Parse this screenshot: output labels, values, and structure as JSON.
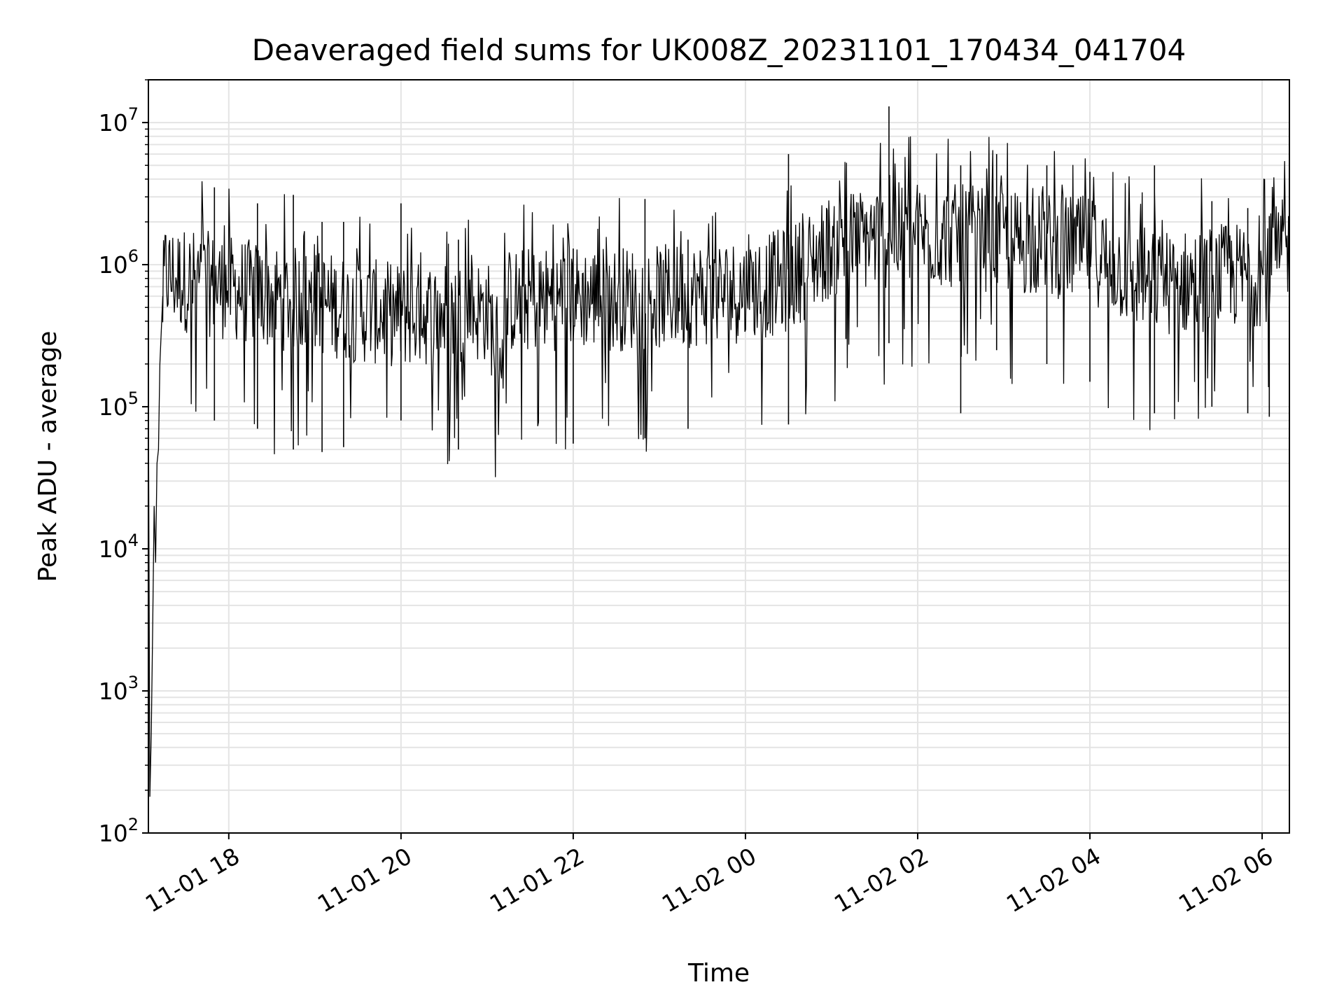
{
  "chart_data": {
    "type": "line",
    "title": "Deaveraged field sums for UK008Z_20231101_170434_041704",
    "xlabel": "Time",
    "ylabel": "Peak ADU - average",
    "yscale": "log",
    "ylim": [
      100,
      20000000
    ],
    "xlim": [
      "2023-11-01 17:04",
      "2023-11-02 06:19"
    ],
    "grid": true,
    "x_ticks": [
      {
        "value": "2023-11-01 18:00",
        "label": "11-01 18"
      },
      {
        "value": "2023-11-01 20:00",
        "label": "11-01 20"
      },
      {
        "value": "2023-11-01 22:00",
        "label": "11-01 22"
      },
      {
        "value": "2023-11-02 00:00",
        "label": "11-02 00"
      },
      {
        "value": "2023-11-02 02:00",
        "label": "11-02 02"
      },
      {
        "value": "2023-11-02 04:00",
        "label": "11-02 04"
      },
      {
        "value": "2023-11-02 06:00",
        "label": "11-02 06"
      }
    ],
    "y_ticks": [
      {
        "value": 100,
        "base": "10",
        "exp": "2"
      },
      {
        "value": 1000,
        "base": "10",
        "exp": "3"
      },
      {
        "value": 10000,
        "base": "10",
        "exp": "4"
      },
      {
        "value": 100000,
        "base": "10",
        "exp": "5"
      },
      {
        "value": 1000000,
        "base": "10",
        "exp": "6"
      },
      {
        "value": 10000000,
        "base": "10",
        "exp": "7"
      }
    ],
    "series": [
      {
        "color": "#000000",
        "x": [
          "2023-11-01 17:04",
          "2023-11-01 17:05",
          "2023-11-01 17:06",
          "2023-11-01 17:07",
          "2023-11-01 17:08",
          "2023-11-01 17:09",
          "2023-11-01 17:10",
          "2023-11-01 17:11",
          "2023-11-01 17:12",
          "2023-11-01 17:14",
          "2023-11-01 17:16",
          "2023-11-01 17:18",
          "2023-11-01 17:30",
          "2023-11-01 17:45",
          "2023-11-01 18:00",
          "2023-11-01 18:30",
          "2023-11-01 19:00",
          "2023-11-01 19:30",
          "2023-11-01 20:00",
          "2023-11-01 20:30",
          "2023-11-01 21:00",
          "2023-11-01 21:10",
          "2023-11-01 21:15",
          "2023-11-01 21:30",
          "2023-11-01 22:00",
          "2023-11-01 22:30",
          "2023-11-01 23:00",
          "2023-11-01 23:30",
          "2023-11-02 00:00",
          "2023-11-02 00:30",
          "2023-11-02 01:00",
          "2023-11-02 01:30",
          "2023-11-02 02:00",
          "2023-11-02 02:30",
          "2023-11-02 03:00",
          "2023-11-02 03:30",
          "2023-11-02 04:00",
          "2023-11-02 04:30",
          "2023-11-02 05:00",
          "2023-11-02 05:30",
          "2023-11-02 06:00",
          "2023-11-02 06:19"
        ],
        "y": [
          130000,
          180,
          500,
          3000,
          20000,
          8000,
          40000,
          50000,
          200000,
          600000,
          1000000,
          900000,
          850000,
          800000,
          750000,
          650000,
          600000,
          520000,
          480000,
          500000,
          520000,
          250000,
          600000,
          620000,
          650000,
          630000,
          640000,
          680000,
          720000,
          850000,
          1500000,
          1700000,
          1800000,
          1700000,
          1600000,
          1500000,
          1400000,
          900000,
          800000,
          900000,
          950000,
          1500000
        ],
        "spikes": [
          {
            "x": "2023-11-01 17:50",
            "high": 3500000,
            "low": 80000
          },
          {
            "x": "2023-11-01 18:20",
            "high": 2700000,
            "low": 70000
          },
          {
            "x": "2023-11-01 18:45",
            "high": 3100000,
            "low": 50000
          },
          {
            "x": "2023-11-01 19:05",
            "high": 2000000,
            "low": 48000
          },
          {
            "x": "2023-11-01 19:20",
            "high": 2000000,
            "low": 52000
          },
          {
            "x": "2023-11-01 20:00",
            "high": 2700000,
            "low": 80000
          },
          {
            "x": "2023-11-01 20:40",
            "high": 1500000,
            "low": 50000
          },
          {
            "x": "2023-11-01 22:00",
            "high": 1300000,
            "low": 55000
          },
          {
            "x": "2023-11-01 22:50",
            "high": 2900000,
            "low": 60000
          },
          {
            "x": "2023-11-01 23:20",
            "high": 1500000,
            "low": 70000
          },
          {
            "x": "2023-11-02 00:30",
            "high": 6000000,
            "low": 75000
          },
          {
            "x": "2023-11-02 01:10",
            "high": 3000000,
            "low": 300000
          },
          {
            "x": "2023-11-02 01:40",
            "high": 13000000,
            "low": 280000
          },
          {
            "x": "2023-11-02 02:30",
            "high": 5000000,
            "low": 90000
          },
          {
            "x": "2023-11-02 02:55",
            "high": 6000000,
            "low": 250000
          },
          {
            "x": "2023-11-02 03:30",
            "high": 5000000,
            "low": 200000
          },
          {
            "x": "2023-11-02 04:00",
            "high": 4500000,
            "low": 150000
          },
          {
            "x": "2023-11-02 04:45",
            "high": 5000000,
            "low": 90000
          },
          {
            "x": "2023-11-02 05:25",
            "high": 2800000,
            "low": 100000
          },
          {
            "x": "2023-11-02 05:50",
            "high": 2500000,
            "low": 90000
          },
          {
            "x": "2023-11-02 06:05",
            "high": 2200000,
            "low": 85000
          }
        ]
      }
    ]
  }
}
